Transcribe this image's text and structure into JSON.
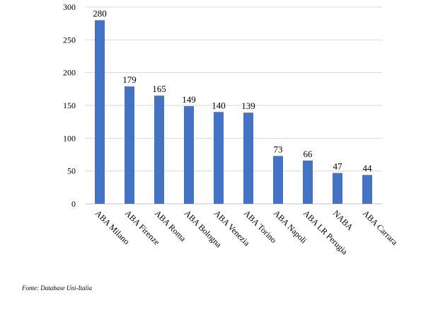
{
  "chart_data": {
    "type": "bar",
    "categories": [
      "ABA Milano",
      "ABA Firenze",
      "ABA Roma",
      "ABA Bologna",
      "ABA Venezia",
      "ABA Torino",
      "ABA Napoli",
      "ABA LR Perugia",
      "NABA",
      "ABA Carrara"
    ],
    "values": [
      280,
      179,
      165,
      149,
      140,
      139,
      73,
      66,
      47,
      44
    ],
    "ylim": [
      0,
      300
    ],
    "yticks": [
      0,
      50,
      100,
      150,
      200,
      250,
      300
    ],
    "grid": true,
    "legend": "none",
    "colors": {
      "bar": "#4472C4",
      "grid": "#D9D9D9",
      "text": "#000000"
    }
  },
  "note": "Fonte: Database Uni-Italia"
}
